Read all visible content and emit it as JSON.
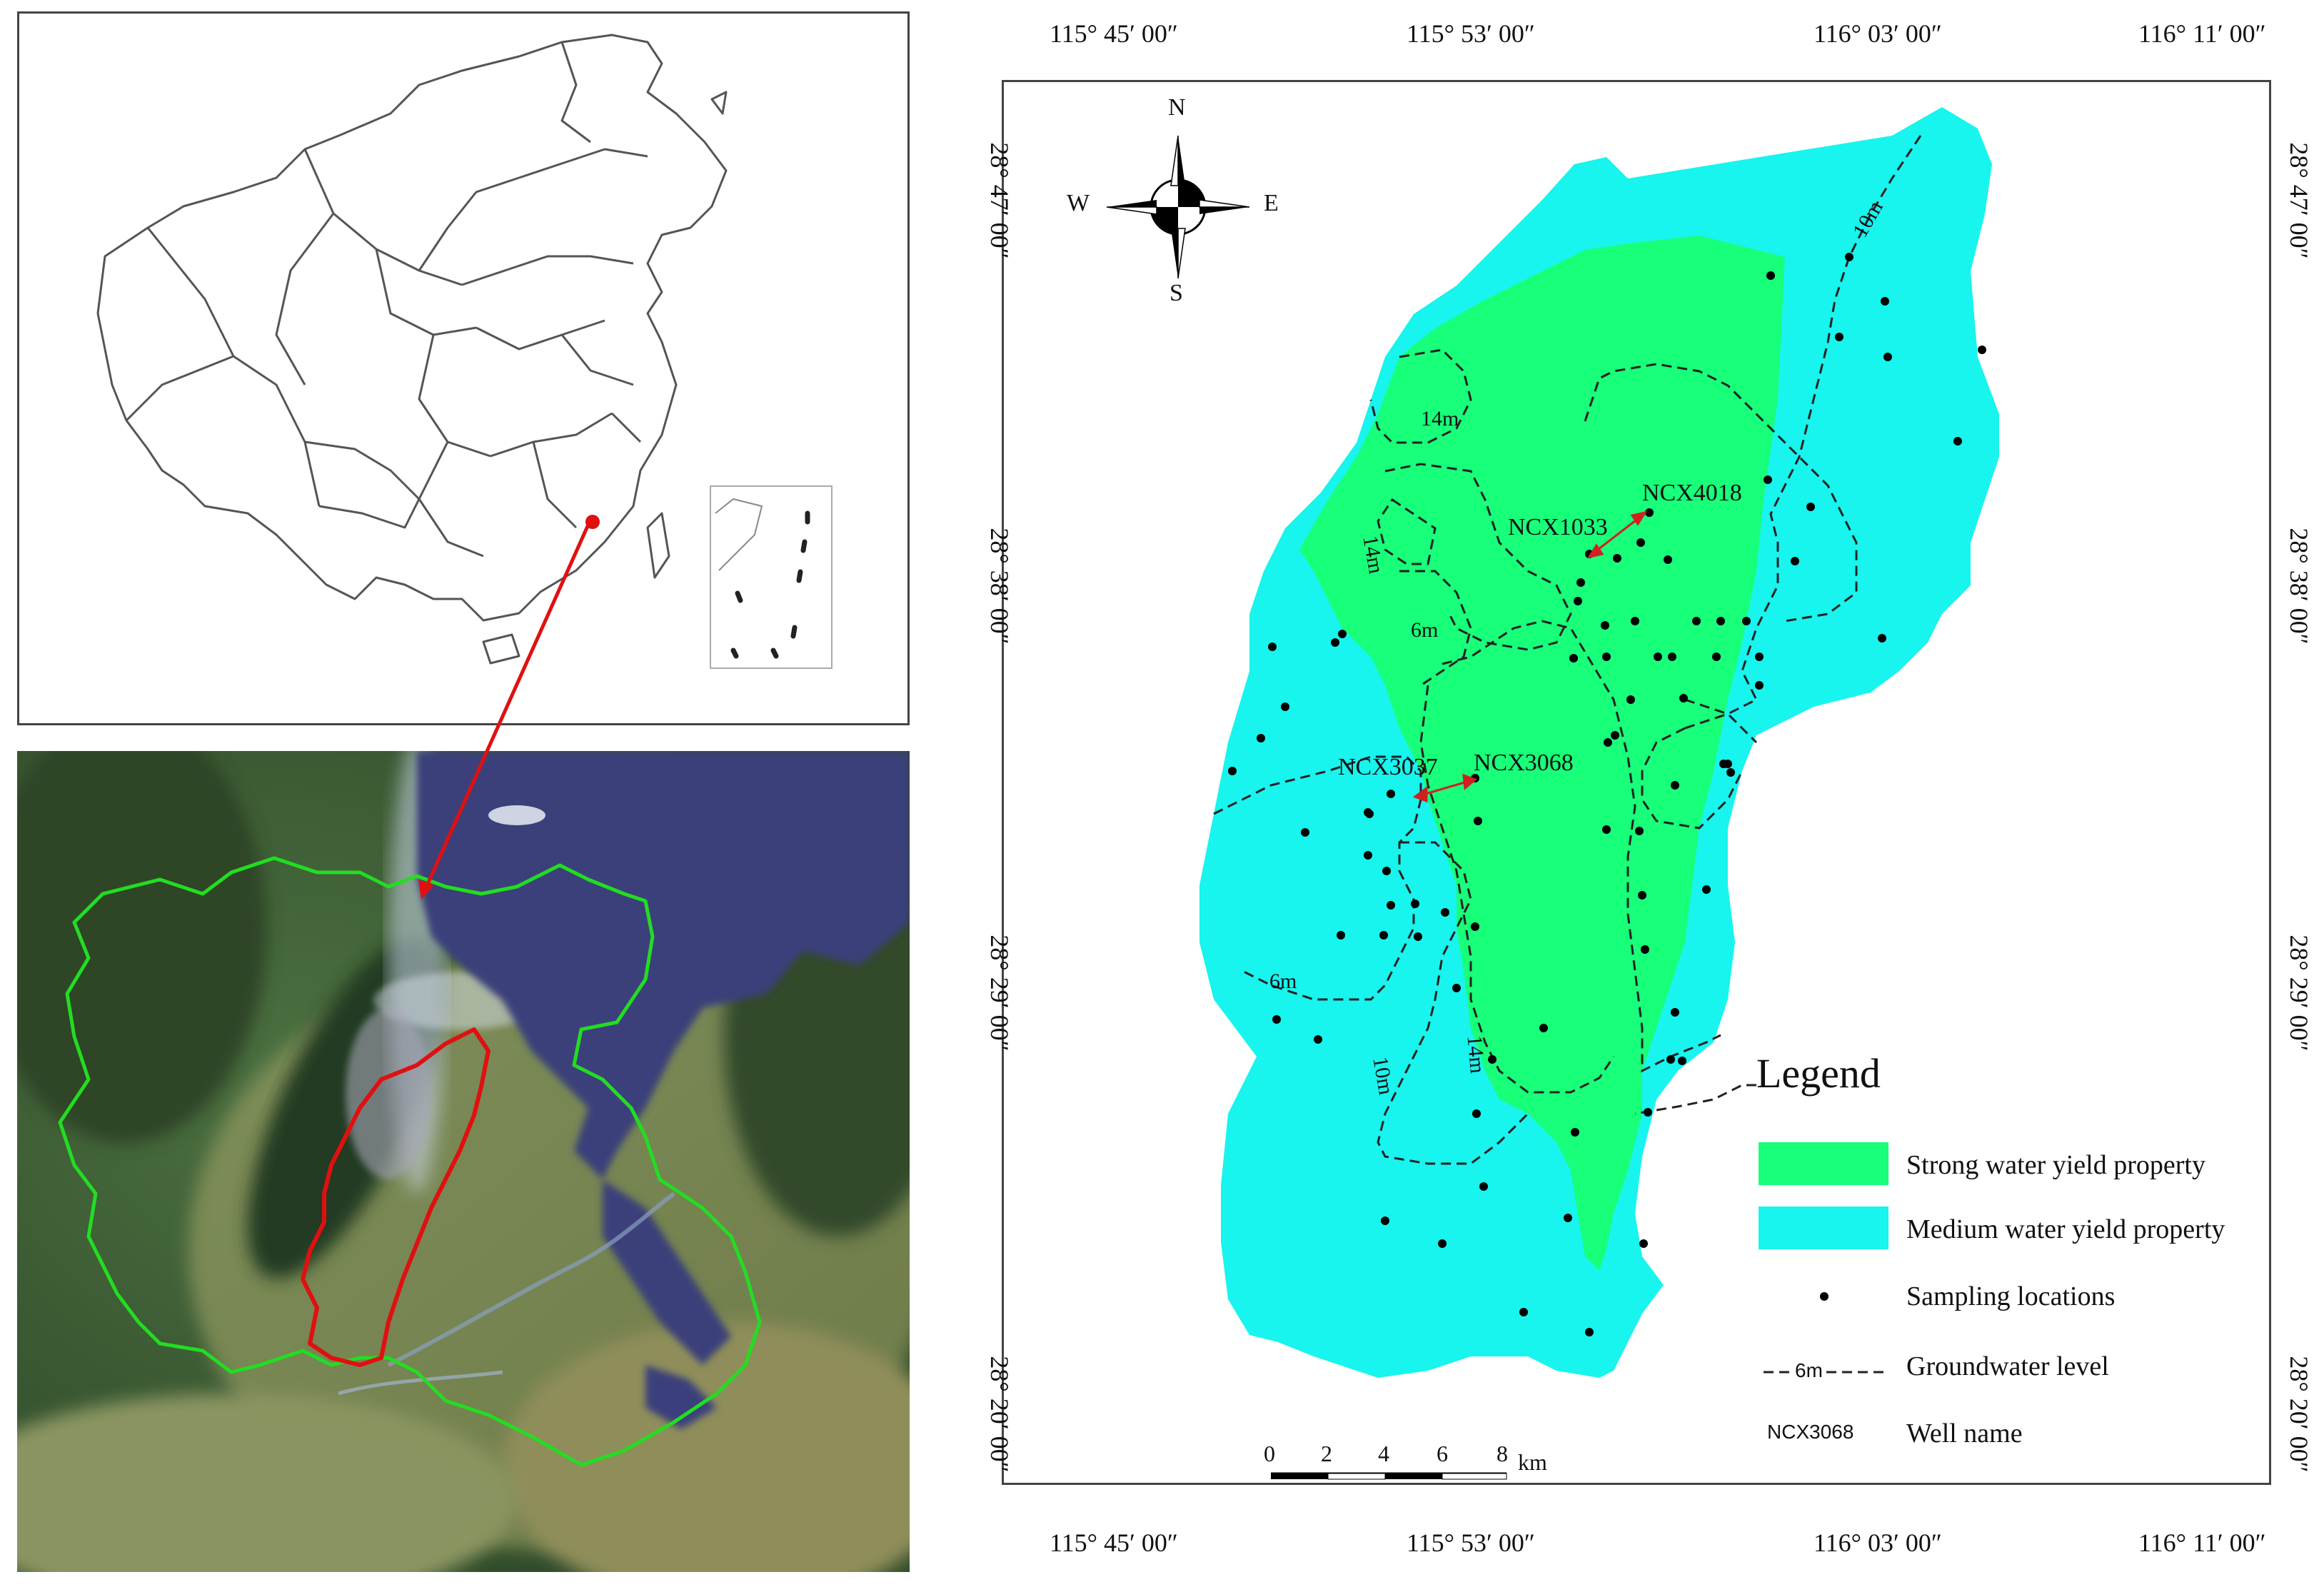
{
  "coords": {
    "top": [
      "115° 45′ 00″",
      "115° 53′ 00″",
      "116° 03′ 00″",
      "116° 11′ 00″"
    ],
    "bottom": [
      "115° 45′ 00″",
      "115° 53′ 00″",
      "116° 03′ 00″",
      "116° 11′ 00″"
    ],
    "left": [
      "28° 47′ 00″",
      "28° 38′ 00″",
      "28° 29′ 00″",
      "28° 20′ 00″"
    ],
    "right": [
      "28° 47′ 00″",
      "28° 38′ 00″",
      "28° 29′ 00″",
      "28° 20′ 00″"
    ]
  },
  "compass": {
    "n": "N",
    "s": "S",
    "e": "E",
    "w": "W"
  },
  "wells": {
    "ncx4018": "NCX4018",
    "ncx1033": "NCX1033",
    "ncx3037": "NCX3037",
    "ncx3068": "NCX3068"
  },
  "contours": {
    "c14a": "14m",
    "c14b": "14m",
    "c14c": "14m",
    "c10a": "10m",
    "c10b": "10m",
    "c6a": "6m",
    "c6b": "6m"
  },
  "scale": {
    "t0": "0",
    "t2": "2",
    "t4": "4",
    "t6": "6",
    "t8": "8",
    "unit": "km"
  },
  "legend": {
    "title": "Legend",
    "strong": "Strong water yield property",
    "medium": "Medium water yield property",
    "sampling": "Sampling locations",
    "groundwater": "Groundwater level",
    "groundwater_sample": "6m",
    "well": "Well name",
    "well_sample": "NCX3068"
  },
  "colors": {
    "strong": "#18ff7a",
    "medium": "#18f4ee",
    "arrow": "#e02020",
    "boundary_green": "#22dd22",
    "boundary_red": "#e01010"
  }
}
